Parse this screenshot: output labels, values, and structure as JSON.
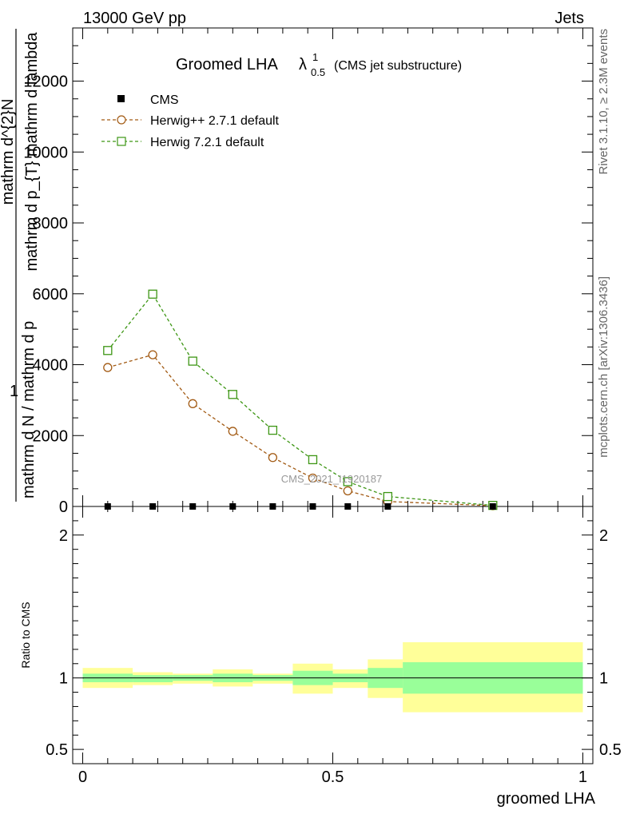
{
  "header": {
    "left": "13000 GeV pp",
    "right": "Jets"
  },
  "side_labels": {
    "rivet": "Rivet 3.1.10, ≥ 2.3M events",
    "mcplots": "mcplots.cern.ch [arXiv:1306.3436]"
  },
  "title": {
    "main": "Groomed LHA",
    "lambda": "λ",
    "sup": "1",
    "sub": "0.5",
    "paren": "(CMS jet substructure)"
  },
  "watermark": "CMS_2021_I1920187",
  "y_label": {
    "one": "1",
    "line_a": "mathrm d N / mathrm d p",
    "line_b": "mathrm d^{2}N",
    "line_c": "mathrm d p_{T} mathrm d lambda",
    "sub_T": "T"
  },
  "ratio_ylabel": "Ratio to CMS",
  "xlabel": "groomed LHA",
  "legend": [
    {
      "label": "CMS",
      "marker": "filled-square",
      "color": "#000000"
    },
    {
      "label": "Herwig++ 2.7.1 default",
      "marker": "open-circle",
      "color": "#a25a13"
    },
    {
      "label": "Herwig 7.2.1 default",
      "marker": "open-square",
      "color": "#3d9614"
    }
  ],
  "colors": {
    "herwigpp": "#a25a13",
    "herwig7": "#3d9614",
    "band_outer": "#ffff99",
    "band_inner": "#99ff99"
  },
  "chart_data": {
    "type": "line",
    "x_range": [
      -0.02,
      1.02
    ],
    "main_y_range": [
      0,
      13500
    ],
    "ratio_y_range": [
      0.4,
      2.2
    ],
    "main_yticks": [
      {
        "v": 0,
        "label": "0"
      },
      {
        "v": 2000,
        "label": "2000"
      },
      {
        "v": 4000,
        "label": "4000"
      },
      {
        "v": 6000,
        "label": "6000"
      },
      {
        "v": 8000,
        "label": "8000"
      },
      {
        "v": 10000,
        "label": "10000"
      },
      {
        "v": 12000,
        "label": "12000"
      }
    ],
    "ratio_yticks": [
      {
        "v": 0.5,
        "label": "0.5"
      },
      {
        "v": 1,
        "label": "1"
      },
      {
        "v": 2,
        "label": "2"
      }
    ],
    "xticks": [
      {
        "v": 0,
        "label": "0"
      },
      {
        "v": 0.5,
        "label": "0.5"
      },
      {
        "v": 1,
        "label": "1"
      }
    ],
    "cms": {
      "name": "CMS",
      "x": [
        0.05,
        0.14,
        0.22,
        0.3,
        0.38,
        0.46,
        0.53,
        0.61,
        0.82
      ],
      "y": [
        0,
        0,
        0,
        0,
        0,
        0,
        0,
        0,
        0
      ]
    },
    "series": [
      {
        "name": "Herwig++ 2.7.1 default",
        "x": [
          0.05,
          0.14,
          0.22,
          0.3,
          0.38,
          0.46,
          0.53,
          0.61,
          0.82
        ],
        "y": [
          3920,
          4280,
          2900,
          2120,
          1380,
          800,
          440,
          140,
          20
        ]
      },
      {
        "name": "Herwig 7.2.1 default",
        "x": [
          0.05,
          0.14,
          0.22,
          0.3,
          0.38,
          0.46,
          0.53,
          0.61,
          0.82
        ],
        "y": [
          4400,
          5990,
          4100,
          3160,
          2150,
          1320,
          700,
          280,
          30
        ]
      }
    ],
    "ratio_bands": [
      {
        "x0": 0.0,
        "x1": 0.1,
        "outer": [
          0.93,
          1.07
        ],
        "inner": [
          0.97,
          1.03
        ]
      },
      {
        "x0": 0.1,
        "x1": 0.18,
        "outer": [
          0.95,
          1.04
        ],
        "inner": [
          0.97,
          1.02
        ]
      },
      {
        "x0": 0.18,
        "x1": 0.26,
        "outer": [
          0.96,
          1.03
        ],
        "inner": [
          0.98,
          1.02
        ]
      },
      {
        "x0": 0.26,
        "x1": 0.34,
        "outer": [
          0.94,
          1.06
        ],
        "inner": [
          0.97,
          1.03
        ]
      },
      {
        "x0": 0.34,
        "x1": 0.42,
        "outer": [
          0.96,
          1.03
        ],
        "inner": [
          0.98,
          1.02
        ]
      },
      {
        "x0": 0.42,
        "x1": 0.5,
        "outer": [
          0.89,
          1.1
        ],
        "inner": [
          0.95,
          1.05
        ]
      },
      {
        "x0": 0.5,
        "x1": 0.57,
        "outer": [
          0.93,
          1.06
        ],
        "inner": [
          0.97,
          1.03
        ]
      },
      {
        "x0": 0.57,
        "x1": 0.64,
        "outer": [
          0.86,
          1.13
        ],
        "inner": [
          0.93,
          1.07
        ]
      },
      {
        "x0": 0.64,
        "x1": 1.0,
        "outer": [
          0.76,
          1.25
        ],
        "inner": [
          0.89,
          1.11
        ]
      }
    ],
    "ratio_reference": 1,
    "grid": false,
    "legend_position": "top-left"
  }
}
